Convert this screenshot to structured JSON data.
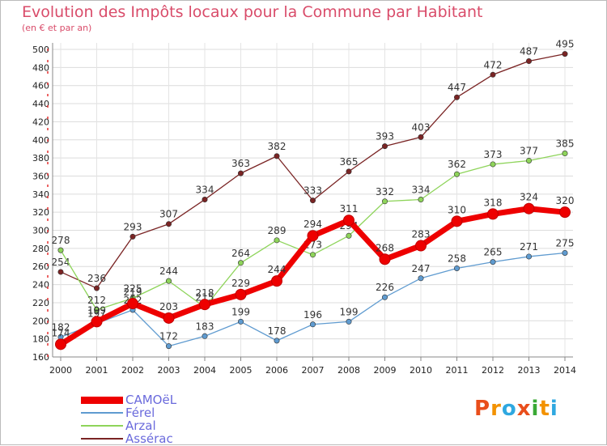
{
  "header": {
    "title": "Evolution des Impôts locaux pour la Commune par Habitant",
    "subtitle": "(en € et par an)"
  },
  "logo": {
    "text": "Proxiti",
    "colors": [
      "#e94e1b",
      "#f39200",
      "#2fa8e0",
      "#e94e1b",
      "#3aa935",
      "#f39200",
      "#2fa8e0"
    ]
  },
  "chart_data": {
    "type": "line",
    "x": [
      2000,
      2001,
      2002,
      2003,
      2004,
      2005,
      2006,
      2007,
      2008,
      2009,
      2010,
      2011,
      2012,
      2013,
      2014
    ],
    "ylim": [
      160,
      500
    ],
    "yticks": [
      160,
      180,
      200,
      220,
      240,
      260,
      280,
      300,
      320,
      340,
      360,
      380,
      400,
      420,
      440,
      460,
      480,
      500
    ],
    "grid": true,
    "legend_position": "bottom-left",
    "series": [
      {
        "name": "Assérac",
        "color": "#7a2424",
        "width": 1.3,
        "values": [
          254,
          236,
          293,
          307,
          334,
          363,
          382,
          333,
          365,
          393,
          403,
          447,
          472,
          487,
          495
        ]
      },
      {
        "name": "Arzal",
        "color": "#8ed45a",
        "width": 1.3,
        "values": [
          278,
          212,
          225,
          244,
          215,
          264,
          289,
          273,
          294,
          332,
          334,
          362,
          373,
          377,
          385
        ]
      },
      {
        "name": "Férel",
        "color": "#5f9bd0",
        "width": 1.3,
        "values": [
          182,
          197,
          212,
          172,
          183,
          199,
          178,
          196,
          199,
          226,
          247,
          258,
          265,
          271,
          275
        ]
      },
      {
        "name": "CAMOëL",
        "color": "#ee0000",
        "width": 7,
        "values": [
          174,
          199,
          219,
          203,
          218,
          229,
          244,
          294,
          311,
          268,
          283,
          310,
          318,
          324,
          320
        ]
      }
    ]
  }
}
